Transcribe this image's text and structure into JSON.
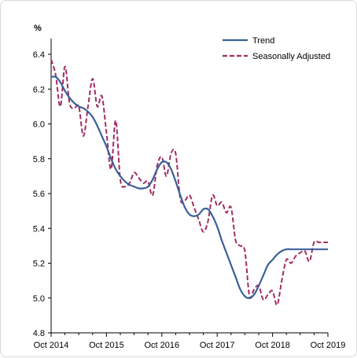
{
  "chart_data": {
    "type": "line",
    "title": "",
    "xlabel": "",
    "ylabel": "%",
    "ylim": [
      4.8,
      6.4
    ],
    "xlim": [
      "2014-10",
      "2019-10"
    ],
    "grid": false,
    "legend_position": "top-right",
    "y_ticks": [
      "4.8",
      "5.0",
      "5.2",
      "5.4",
      "5.6",
      "5.8",
      "6.0",
      "6.2",
      "6.4"
    ],
    "x_ticks": [
      {
        "label": "Oct 2014",
        "x": "2014-10"
      },
      {
        "label": "Oct 2015",
        "x": "2015-10"
      },
      {
        "label": "Oct 2016",
        "x": "2016-10"
      },
      {
        "label": "Oct 2017",
        "x": "2017-10"
      },
      {
        "label": "Oct 2018",
        "x": "2018-10"
      },
      {
        "label": "Oct 2019",
        "x": "2019-10"
      }
    ],
    "x": [
      "2014-10",
      "2014-11",
      "2014-12",
      "2015-01",
      "2015-02",
      "2015-03",
      "2015-04",
      "2015-05",
      "2015-06",
      "2015-07",
      "2015-08",
      "2015-09",
      "2015-10",
      "2015-11",
      "2015-12",
      "2016-01",
      "2016-02",
      "2016-03",
      "2016-04",
      "2016-05",
      "2016-06",
      "2016-07",
      "2016-08",
      "2016-09",
      "2016-10",
      "2016-11",
      "2016-12",
      "2017-01",
      "2017-02",
      "2017-03",
      "2017-04",
      "2017-05",
      "2017-06",
      "2017-07",
      "2017-08",
      "2017-09",
      "2017-10",
      "2017-11",
      "2017-12",
      "2018-01",
      "2018-02",
      "2018-03",
      "2018-04",
      "2018-05",
      "2018-06",
      "2018-07",
      "2018-08",
      "2018-09",
      "2018-10",
      "2018-11",
      "2018-12",
      "2019-01",
      "2019-02",
      "2019-03",
      "2019-04",
      "2019-05",
      "2019-06",
      "2019-07",
      "2019-08",
      "2019-09",
      "2019-10"
    ],
    "series": [
      {
        "name": "Trend",
        "color": "#3a5f9a",
        "dash": "solid",
        "values": [
          6.27,
          6.27,
          6.24,
          6.19,
          6.15,
          6.12,
          6.1,
          6.09,
          6.07,
          6.04,
          5.99,
          5.93,
          5.87,
          5.8,
          5.74,
          5.7,
          5.67,
          5.65,
          5.64,
          5.63,
          5.63,
          5.64,
          5.68,
          5.74,
          5.78,
          5.78,
          5.74,
          5.67,
          5.59,
          5.52,
          5.48,
          5.47,
          5.48,
          5.51,
          5.51,
          5.47,
          5.41,
          5.33,
          5.26,
          5.19,
          5.12,
          5.05,
          5.01,
          5.0,
          5.02,
          5.07,
          5.13,
          5.19,
          5.22,
          5.25,
          5.27,
          5.28,
          5.28,
          5.28,
          5.28,
          5.28,
          5.28,
          5.28,
          5.28,
          5.28,
          5.28
        ]
      },
      {
        "name": "Seasonally Adjusted",
        "color": "#a22b63",
        "dash": "dashed",
        "values": [
          6.37,
          6.28,
          6.1,
          6.33,
          6.12,
          6.09,
          6.1,
          5.93,
          6.1,
          6.26,
          6.1,
          6.16,
          5.95,
          5.74,
          6.02,
          5.68,
          5.64,
          5.66,
          5.72,
          5.69,
          5.66,
          5.67,
          5.59,
          5.76,
          5.81,
          5.7,
          5.83,
          5.83,
          5.57,
          5.56,
          5.59,
          5.52,
          5.45,
          5.38,
          5.44,
          5.59,
          5.53,
          5.55,
          5.49,
          5.52,
          5.33,
          5.3,
          5.27,
          5.01,
          5.05,
          5.07,
          4.99,
          5.02,
          5.04,
          4.96,
          5.1,
          5.22,
          5.2,
          5.24,
          5.26,
          5.27,
          5.21,
          5.32,
          5.32,
          5.32,
          5.32
        ]
      }
    ]
  }
}
